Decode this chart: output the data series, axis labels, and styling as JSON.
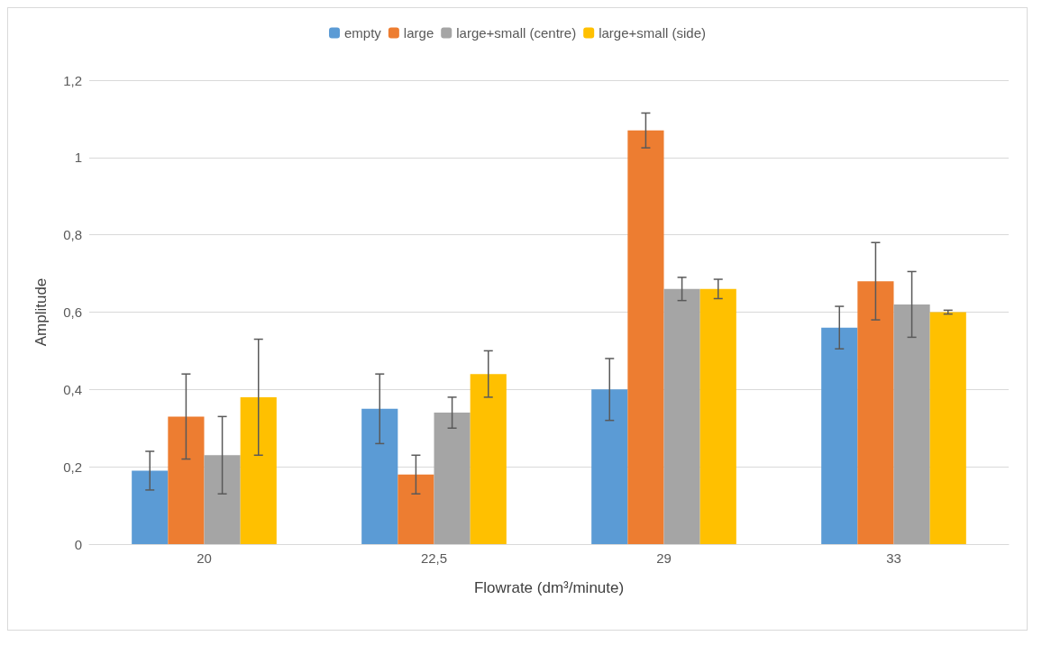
{
  "chart_data": {
    "type": "bar",
    "xlabel": "Flowrate (dm³/minute)",
    "ylabel": "Amplitude",
    "categories": [
      "20",
      "22,5",
      "29",
      "33"
    ],
    "series": [
      {
        "name": "empty",
        "color": "#5b9bd5",
        "values": [
          0.19,
          0.35,
          0.4,
          0.56
        ],
        "errors": [
          0.05,
          0.09,
          0.08,
          0.055
        ]
      },
      {
        "name": "large",
        "color": "#ed7d31",
        "values": [
          0.33,
          0.18,
          1.07,
          0.68
        ],
        "errors": [
          0.11,
          0.05,
          0.045,
          0.1
        ]
      },
      {
        "name": "large+small (centre)",
        "color": "#a5a5a5",
        "values": [
          0.23,
          0.34,
          0.66,
          0.62
        ],
        "errors": [
          0.1,
          0.04,
          0.03,
          0.085
        ]
      },
      {
        "name": "large+small (side)",
        "color": "#ffc000",
        "values": [
          0.38,
          0.44,
          0.66,
          0.6
        ],
        "errors": [
          0.15,
          0.06,
          0.025,
          0.005
        ]
      }
    ],
    "ylim": [
      0,
      1.2
    ],
    "yticks": [
      0,
      {
        "value": 0.2,
        "label": "0,2"
      },
      {
        "value": 0.4,
        "label": "0,4"
      },
      {
        "value": 0.6,
        "label": "0,6"
      },
      {
        "value": 0.8,
        "label": "0,8"
      },
      1,
      {
        "value": 1.2,
        "label": "1,2"
      }
    ],
    "grid": "y",
    "legend": "top"
  }
}
